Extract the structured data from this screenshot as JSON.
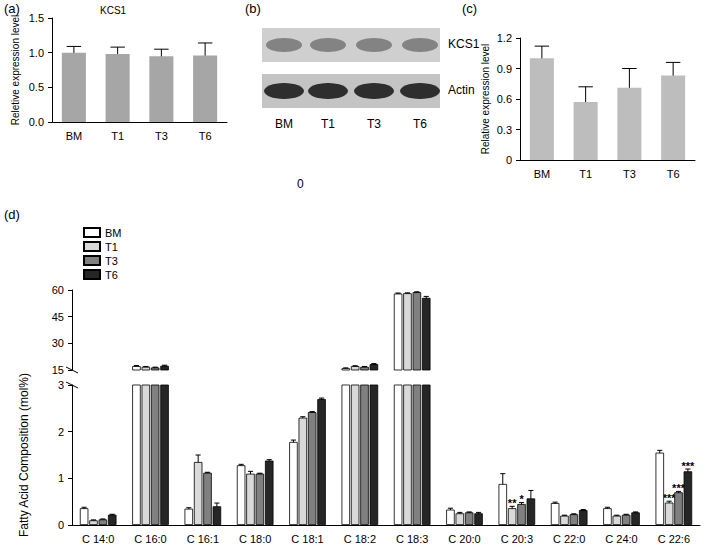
{
  "chart_data": [
    {
      "type": "bar",
      "annotations": [
        "(a)"
      ],
      "title": "KCS1",
      "y_label": "Reletive expression level",
      "categories": [
        "BM",
        "T1",
        "T3",
        "T6"
      ],
      "values": [
        1.0,
        0.98,
        0.95,
        0.96
      ],
      "errors": [
        0.09,
        0.1,
        0.1,
        0.18
      ],
      "color": "#a6a6a6",
      "ylim": [
        0,
        1.5
      ],
      "yticks": [
        {
          "value": 0,
          "label": "0.0"
        },
        0.5,
        {
          "value": 1,
          "label": "1.0"
        },
        1.5
      ],
      "grid": false
    },
    {
      "type": "bar",
      "annotations": [
        "(c)"
      ],
      "y_label": "Relative expression level",
      "categories": [
        "BM",
        "T1",
        "T3",
        "T6"
      ],
      "values": [
        1.0,
        0.57,
        0.71,
        0.83
      ],
      "errors": [
        0.12,
        0.15,
        0.19,
        0.13
      ],
      "color": "#bdbdbd",
      "ylim": [
        0,
        1.2
      ],
      "yticks": [
        0,
        0.3,
        0.6,
        0.9,
        1.2
      ],
      "grid": false
    },
    {
      "type": "bar",
      "annotations": [
        "(d)"
      ],
      "y_label": "Fatty Acid Composition (mol%)",
      "categories": [
        "C 14:0",
        "C 16:0",
        "C 16:1",
        "C 18:0",
        "C 18:1",
        "C 18:2",
        "C 18:3",
        "C 20:0",
        "C 20:3",
        "C 22:0",
        "C 24:0",
        "C 22:6"
      ],
      "series": [
        {
          "name": "BM",
          "color": "#ffffff",
          "values": [
            0.36,
            17.2,
            0.35,
            1.28,
            1.78,
            16.0,
            58.0,
            0.33,
            0.88,
            0.47,
            0.36,
            1.55
          ],
          "errors": [
            0.02,
            0.3,
            0.02,
            0.02,
            0.04,
            0.2,
            0.3,
            0.03,
            0.22,
            0.02,
            0.02,
            0.05
          ],
          "significance": [
            null,
            null,
            null,
            null,
            null,
            null,
            null,
            null,
            null,
            null,
            null,
            null
          ]
        },
        {
          "name": "T1",
          "color": "#d9d9d9",
          "values": [
            0.1,
            16.8,
            1.35,
            1.1,
            2.3,
            17.2,
            58.2,
            0.25,
            0.36,
            0.2,
            0.2,
            0.48
          ],
          "errors": [
            0.01,
            0.2,
            0.15,
            0.05,
            0.02,
            0.2,
            0.2,
            0.02,
            0.04,
            0.01,
            0.01,
            0.03
          ],
          "significance": [
            null,
            null,
            null,
            null,
            null,
            null,
            null,
            null,
            "**",
            null,
            null,
            "***"
          ]
        },
        {
          "name": "T3",
          "color": "#808080",
          "values": [
            0.12,
            16.4,
            1.12,
            1.1,
            2.42,
            16.8,
            58.8,
            0.27,
            0.45,
            0.23,
            0.22,
            0.7
          ],
          "errors": [
            0.01,
            0.2,
            0.01,
            0.01,
            0.01,
            0.2,
            0.2,
            0.01,
            0.03,
            0.01,
            0.01,
            0.02
          ],
          "significance": [
            null,
            null,
            null,
            null,
            null,
            null,
            null,
            null,
            "*",
            null,
            null,
            "***"
          ]
        },
        {
          "name": "T6",
          "color": "#262626",
          "values": [
            0.22,
            17.4,
            0.4,
            1.38,
            2.7,
            18.3,
            55.6,
            0.25,
            0.57,
            0.32,
            0.27,
            1.15
          ],
          "errors": [
            0.01,
            0.3,
            0.07,
            0.02,
            0.02,
            0.3,
            0.8,
            0.02,
            0.17,
            0.01,
            0.01,
            0.05
          ],
          "significance": [
            null,
            null,
            null,
            null,
            null,
            null,
            null,
            null,
            null,
            null,
            null,
            "***"
          ]
        }
      ],
      "ylim": [
        0,
        60
      ],
      "yticks": [
        0,
        1,
        2,
        3,
        15,
        30,
        45,
        60
      ],
      "y_break": [
        3,
        15
      ],
      "legend": "upper left",
      "grid": false
    }
  ],
  "blot": {
    "panel": "(b)",
    "lanes": [
      "BM",
      "T1",
      "T3",
      "T6"
    ],
    "bands": [
      "KCS1",
      "Actin"
    ]
  },
  "annotations": [
    "0"
  ]
}
